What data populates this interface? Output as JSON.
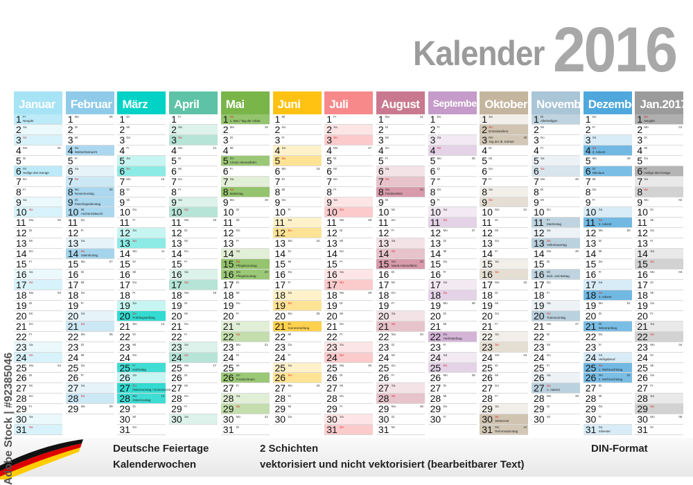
{
  "title": {
    "word": "Kalender",
    "year": "2016"
  },
  "weekdays": [
    "Mo",
    "Di",
    "Mi",
    "Do",
    "Fr",
    "Sa",
    "So"
  ],
  "months": [
    {
      "name": "Januar",
      "year": 2016,
      "month": 0,
      "days": 31,
      "color": "#a6e3f5",
      "holidays": {
        "1": "Neujahr",
        "6": "Heilige drei Könige"
      }
    },
    {
      "name": "Februar",
      "year": 2016,
      "month": 1,
      "days": 29,
      "color": "#8fcbe9",
      "holidays": {
        "4": "Weiberfastnacht",
        "8": "Rosenmontag",
        "9": "Faschingsdienstag",
        "10": "Aschermittwoch",
        "14": "Valentinstag"
      }
    },
    {
      "name": "März",
      "year": 2016,
      "month": 2,
      "days": 31,
      "color": "#00d2c6",
      "holidays": {
        "20": "Frühlingsanfang",
        "25": "Karfreitag",
        "27": "Ostersonntag / Sommerzeit",
        "28": "Ostermontag"
      }
    },
    {
      "name": "April",
      "year": 2016,
      "month": 3,
      "days": 30,
      "color": "#5ec3a6",
      "holidays": {}
    },
    {
      "name": "Mai",
      "year": 2016,
      "month": 4,
      "days": 31,
      "color": "#79b548",
      "holidays": {
        "1": "1. Mai / Tag der Arbeit",
        "5": "Christi Himmelfahrt",
        "8": "Muttertag",
        "15": "Pfingstsonntag",
        "16": "Pfingstmontag",
        "26": "Fronleichnam"
      }
    },
    {
      "name": "Juni",
      "year": 2016,
      "month": 5,
      "days": 30,
      "color": "#ffc213",
      "holidays": {
        "21": "Sommeranfang"
      }
    },
    {
      "name": "Juli",
      "year": 2016,
      "month": 6,
      "days": 31,
      "color": "#f7898b",
      "holidays": {}
    },
    {
      "name": "August",
      "year": 2016,
      "month": 7,
      "days": 31,
      "color": "#c9798f",
      "holidays": {
        "8": "Friedensfest",
        "15": "Mariä Himmelfahrt"
      }
    },
    {
      "name": "September",
      "year": 2016,
      "month": 8,
      "days": 30,
      "color": "#c49bc9",
      "holidays": {
        "22": "Herbstanfang"
      }
    },
    {
      "name": "Oktober",
      "year": 2016,
      "month": 9,
      "days": 31,
      "color": "#c4b59e",
      "holidays": {
        "2": "Erntedankfest",
        "3": "Tag der dt. Einheit",
        "30": "Winterzeit",
        "31": "Reformationstag"
      }
    },
    {
      "name": "November",
      "year": 2016,
      "month": 10,
      "days": 30,
      "color": "#a9c5d6",
      "holidays": {
        "1": "Allerheiligen",
        "11": "Martinstag",
        "13": "Volkstrauertag",
        "16": "Buß- und Bettag",
        "20": "Totensonntag",
        "27": "1. Advent"
      }
    },
    {
      "name": "Dezember",
      "year": 2016,
      "month": 11,
      "days": 31,
      "color": "#4ea8dc",
      "holidays": {
        "4": "2. Advent",
        "6": "Nikolaus",
        "11": "3. Advent",
        "18": "4. Advent",
        "21": "Winteranfang",
        "24": "Heiligabend",
        "25": "1. Weihnachtstag",
        "26": "2. Weihnachtstag",
        "31": "Silvester"
      }
    },
    {
      "name": "Jan.2017",
      "year": 2017,
      "month": 0,
      "days": 31,
      "color": "#9b9b9b",
      "holidays": {
        "1": "Neujahr",
        "6": "Heilige drei Könige"
      }
    }
  ],
  "footer": {
    "line1_left": "Deutsche Feiertage",
    "line2_left": "Kalenderwochen",
    "line1_mid": "2 Schichten",
    "line2_mid": "vektorisiert und nicht vektorisiert (bearbeitbarer Text)",
    "line1_right": "DIN-Format"
  },
  "watermark": "Adobe Stock | #92385046"
}
